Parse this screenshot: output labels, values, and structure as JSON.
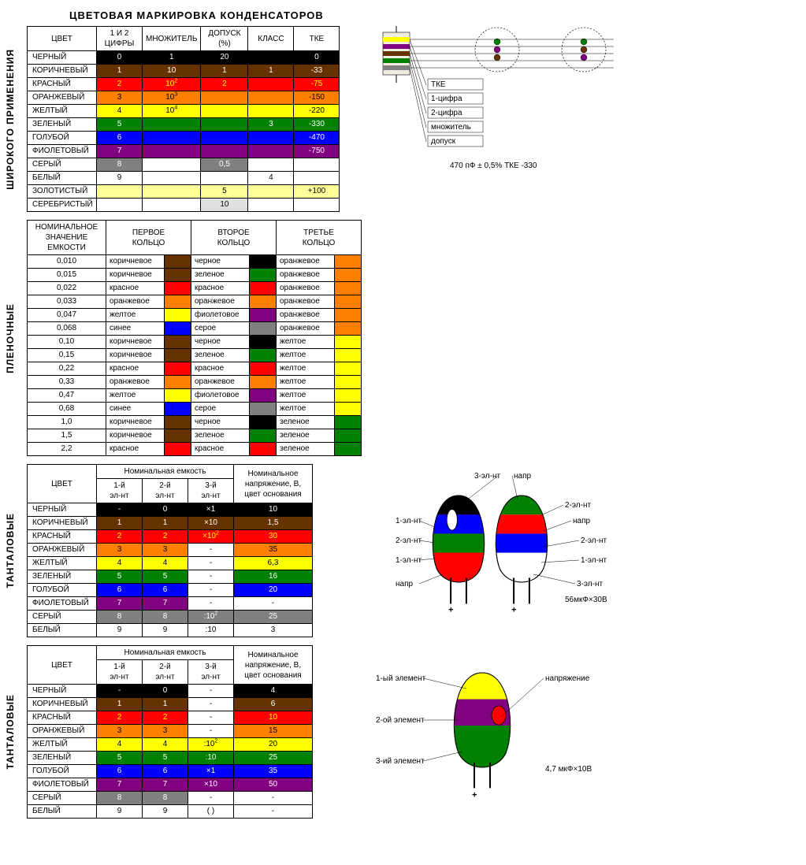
{
  "title": "ЦВЕТОВАЯ МАРКИРОВКА КОНДЕНСАТОРОВ",
  "palette": {
    "black": "#000000",
    "brown": "#663300",
    "red": "#ff0000",
    "orange": "#ff8000",
    "yellow": "#ffff00",
    "green": "#008000",
    "blue": "#0000ff",
    "violet": "#800080",
    "grey": "#808080",
    "white": "#ffffff",
    "gold": "#ffff99",
    "silver": "#e0e0e0"
  },
  "text_on": {
    "black": "#ffffff",
    "brown": "#ffffff",
    "red": "#ffff00",
    "orange": "#000000",
    "yellow": "#000000",
    "green": "#ffffff",
    "blue": "#ffffff",
    "violet": "#ffffff",
    "grey": "#ffffff",
    "white": "#000000",
    "gold": "#000000",
    "silver": "#000000",
    "none": "#000000"
  },
  "col_widths": {
    "t1": [
      88,
      58,
      74,
      60,
      58,
      58
    ],
    "t2": [
      100,
      74,
      34,
      74,
      34,
      74,
      34
    ],
    "t3": [
      88,
      58,
      58,
      58,
      100
    ],
    "t4": [
      88,
      58,
      58,
      58,
      100
    ]
  },
  "section1": {
    "vlabel": "ШИРОКОГО ПРИМЕНЕНИЯ",
    "headers": [
      "ЦВЕТ",
      "1 И 2\nЦИФРЫ",
      "МНОЖИТЕЛЬ",
      "ДОПУСК\n(%)",
      "КЛАСС",
      "ТКЕ"
    ],
    "rows": [
      {
        "name": "ЧЕРНЫЙ",
        "c": "black",
        "d": "0",
        "m": "1",
        "tol": "20",
        "klass": "",
        "tke": "0"
      },
      {
        "name": "КОРИЧНЕВЫЙ",
        "c": "brown",
        "d": "1",
        "m": "10",
        "tol": "1",
        "klass": "1",
        "tke": "-33"
      },
      {
        "name": "КРАСНЫЙ",
        "c": "red",
        "d": "2",
        "m": "10^2",
        "tol": "2",
        "klass": "",
        "tke": "-75"
      },
      {
        "name": "ОРАНЖЕВЫЙ",
        "c": "orange",
        "d": "3",
        "m": "10^3",
        "tol": "",
        "klass": "",
        "tke": "-150"
      },
      {
        "name": "ЖЕЛТЫЙ",
        "c": "yellow",
        "d": "4",
        "m": "10^4",
        "tol": "",
        "klass": "",
        "tke": "-220"
      },
      {
        "name": "ЗЕЛЕНЫЙ",
        "c": "green",
        "d": "5",
        "m": "",
        "tol": "",
        "klass": "3",
        "tke": "-330"
      },
      {
        "name": "ГОЛУБОЙ",
        "c": "blue",
        "d": "6",
        "m": "",
        "tol": "",
        "klass": "",
        "tke": "-470"
      },
      {
        "name": "ФИОЛЕТОВЫЙ",
        "c": "violet",
        "d": "7",
        "m": "",
        "tol": "",
        "klass": "",
        "tke": "-750"
      },
      {
        "name": "СЕРЫЙ",
        "c": "grey",
        "d": "8",
        "m": "",
        "tol": "0,5",
        "klass": "",
        "tke": "",
        "special": "dm_only"
      },
      {
        "name": "БЕЛЫЙ",
        "c": "white",
        "d": "9",
        "m": "",
        "tol": "",
        "klass": "4",
        "tke": "",
        "plain": true
      },
      {
        "name": "ЗОЛОТИСТЫЙ",
        "c": "gold",
        "d": "",
        "m": "",
        "tol": "5",
        "klass": "",
        "tke": "+100",
        "special": "full"
      },
      {
        "name": "СЕРЕБРИСТЫЙ",
        "c": "silver",
        "d": "",
        "m": "",
        "tol": "10",
        "klass": "",
        "tke": "",
        "special": "tol_only"
      }
    ],
    "diagram": {
      "bands": [
        "yellow",
        "violet",
        "brown",
        "green",
        "grey"
      ],
      "dots2": [
        "green",
        "violet",
        "brown"
      ],
      "dots3": [
        "green",
        "brown",
        "violet"
      ],
      "labels": [
        "ТКЕ",
        "1-цифра",
        "2-цифра",
        "множитель",
        "допуск"
      ],
      "example": "470 пФ ± 0,5% ТКЕ -330"
    }
  },
  "section2": {
    "vlabel": "ПЛЕНОЧНЫЕ",
    "headers": [
      "НОМИНАЛЬНОЕ\nЗНАЧЕНИЕ\nЕМКОСТИ",
      "ПЕРВОЕ\nКОЛЬЦО",
      "ВТОРОЕ\nКОЛЬЦО",
      "ТРЕТЬЕ\nКОЛЬЦО"
    ],
    "rows": [
      {
        "v": "0,010",
        "a": [
          "коричневое",
          "brown"
        ],
        "b": [
          "черное",
          "black"
        ],
        "c": [
          "оранжевое",
          "orange"
        ]
      },
      {
        "v": "0,015",
        "a": [
          "коричневое",
          "brown"
        ],
        "b": [
          "зеленое",
          "green"
        ],
        "c": [
          "оранжевое",
          "orange"
        ]
      },
      {
        "v": "0,022",
        "a": [
          "красное",
          "red"
        ],
        "b": [
          "красное",
          "red"
        ],
        "c": [
          "оранжевое",
          "orange"
        ]
      },
      {
        "v": "0,033",
        "a": [
          "оранжевое",
          "orange"
        ],
        "b": [
          "оранжевое",
          "orange"
        ],
        "c": [
          "оранжевое",
          "orange"
        ]
      },
      {
        "v": "0,047",
        "a": [
          "желтое",
          "yellow"
        ],
        "b": [
          "фиолетовое",
          "violet"
        ],
        "c": [
          "оранжевое",
          "orange"
        ]
      },
      {
        "v": "0,068",
        "a": [
          "синее",
          "blue"
        ],
        "b": [
          "серое",
          "grey"
        ],
        "c": [
          "оранжевое",
          "orange"
        ]
      },
      {
        "v": "0,10",
        "a": [
          "коричневое",
          "brown"
        ],
        "b": [
          "черное",
          "black"
        ],
        "c": [
          "желтое",
          "yellow"
        ]
      },
      {
        "v": "0,15",
        "a": [
          "коричневое",
          "brown"
        ],
        "b": [
          "зеленое",
          "green"
        ],
        "c": [
          "желтое",
          "yellow"
        ]
      },
      {
        "v": "0,22",
        "a": [
          "красное",
          "red"
        ],
        "b": [
          "красное",
          "red"
        ],
        "c": [
          "желтое",
          "yellow"
        ]
      },
      {
        "v": "0,33",
        "a": [
          "оранжевое",
          "orange"
        ],
        "b": [
          "оранжевое",
          "orange"
        ],
        "c": [
          "желтое",
          "yellow"
        ]
      },
      {
        "v": "0,47",
        "a": [
          "желтое",
          "yellow"
        ],
        "b": [
          "фиолетовое",
          "violet"
        ],
        "c": [
          "желтое",
          "yellow"
        ]
      },
      {
        "v": "0,68",
        "a": [
          "синее",
          "blue"
        ],
        "b": [
          "серое",
          "grey"
        ],
        "c": [
          "желтое",
          "yellow"
        ]
      },
      {
        "v": "1,0",
        "a": [
          "коричневое",
          "brown"
        ],
        "b": [
          "черное",
          "black"
        ],
        "c": [
          "зеленое",
          "green"
        ]
      },
      {
        "v": "1,5",
        "a": [
          "коричневое",
          "brown"
        ],
        "b": [
          "зеленое",
          "green"
        ],
        "c": [
          "зеленое",
          "green"
        ]
      },
      {
        "v": "2,2",
        "a": [
          "красное",
          "red"
        ],
        "b": [
          "красное",
          "red"
        ],
        "c": [
          "зеленое",
          "green"
        ]
      }
    ]
  },
  "section3": {
    "vlabel": "ТАНТАЛОВЫЕ",
    "topHeader": "Номинальная емкость",
    "subHeaders": [
      "1-й\nэл-нт",
      "2-й\nэл-нт",
      "3-й\nэл-нт"
    ],
    "rightHeader": "Номинальное\nнапряжение, В,\nцвет основания",
    "headers0": "ЦВЕТ",
    "rows": [
      {
        "name": "ЧЕРНЫЙ",
        "c": "black",
        "a": "-",
        "b": "0",
        "m": "×1",
        "v": "10"
      },
      {
        "name": "КОРИЧНЕВЫЙ",
        "c": "brown",
        "a": "1",
        "b": "1",
        "m": "×10",
        "v": "1,5"
      },
      {
        "name": "КРАСНЫЙ",
        "c": "red",
        "a": "2",
        "b": "2",
        "m": "×10^2",
        "v": "30"
      },
      {
        "name": "ОРАНЖЕВЫЙ",
        "c": "orange",
        "a": "3",
        "b": "3",
        "m": "-",
        "v": "35",
        "m_plain": true
      },
      {
        "name": "ЖЕЛТЫЙ",
        "c": "yellow",
        "a": "4",
        "b": "4",
        "m": "-",
        "v": "6,3",
        "m_plain": true
      },
      {
        "name": "ЗЕЛЕНЫЙ",
        "c": "green",
        "a": "5",
        "b": "5",
        "m": "-",
        "v": "16",
        "m_plain": true
      },
      {
        "name": "ГОЛУБОЙ",
        "c": "blue",
        "a": "6",
        "b": "6",
        "m": "-",
        "v": "20",
        "m_plain": true
      },
      {
        "name": "ФИОЛЕТОВЫЙ",
        "c": "violet",
        "a": "7",
        "b": "7",
        "m": "-",
        "v": "-",
        "m_plain": true,
        "v_plain": true
      },
      {
        "name": "СЕРЫЙ",
        "c": "grey",
        "a": "8",
        "b": "8",
        "m": ":10^2",
        "v": "25"
      },
      {
        "name": "БЕЛЫЙ",
        "c": "white",
        "a": "9",
        "b": "9",
        "m": ":10",
        "v": "3",
        "plain": true
      }
    ],
    "diagram": {
      "labels": {
        "e1": "1-эл-нт",
        "e2": "2-эл-нт",
        "e3": "3-эл-нт",
        "v": "напр"
      },
      "tcolors": [
        "black",
        "blue",
        "green",
        "red"
      ],
      "rcolors": [
        "green",
        "red",
        "blue",
        "white"
      ],
      "example": "56мкФ×30В"
    }
  },
  "section4": {
    "vlabel": "ТАНТАЛОВЫЕ",
    "topHeader": "Номинальная емкость",
    "subHeaders": [
      "1-й\nэл-нт",
      "2-й\nэл-нт",
      "3-й\nэл-нт"
    ],
    "rightHeader": "Номинальное\nнапряжение, В,\nцвет основания",
    "headers0": "ЦВЕТ",
    "rows": [
      {
        "name": "ЧЕРНЫЙ",
        "c": "black",
        "a": "-",
        "b": "0",
        "m": "-",
        "v": "4",
        "m_plain": true
      },
      {
        "name": "КОРИЧНЕВЫЙ",
        "c": "brown",
        "a": "1",
        "b": "1",
        "m": "-",
        "v": "6",
        "m_plain": true
      },
      {
        "name": "КРАСНЫЙ",
        "c": "red",
        "a": "2",
        "b": "2",
        "m": "-",
        "v": "10",
        "m_plain": true
      },
      {
        "name": "ОРАНЖЕВЫЙ",
        "c": "orange",
        "a": "3",
        "b": "3",
        "m": "-",
        "v": "15",
        "m_plain": true
      },
      {
        "name": "ЖЕЛТЫЙ",
        "c": "yellow",
        "a": "4",
        "b": "4",
        "m": ":10^2",
        "v": "20"
      },
      {
        "name": "ЗЕЛЕНЫЙ",
        "c": "green",
        "a": "5",
        "b": "5",
        "m": ":10",
        "v": "25"
      },
      {
        "name": "ГОЛУБОЙ",
        "c": "blue",
        "a": "6",
        "b": "6",
        "m": "×1",
        "v": "35"
      },
      {
        "name": "ФИОЛЕТОВЫЙ",
        "c": "violet",
        "a": "7",
        "b": "7",
        "m": "×10",
        "v": "50"
      },
      {
        "name": "СЕРЫЙ",
        "c": "grey",
        "a": "8",
        "b": "8",
        "m": "-",
        "v": "-",
        "m_plain": true,
        "v_plain": true
      },
      {
        "name": "БЕЛЫЙ",
        "c": "white",
        "a": "9",
        "b": "9",
        "m": "( )",
        "v": "-",
        "plain": true,
        "v_plain": true
      }
    ],
    "diagram": {
      "labels": {
        "e1": "1-ый элемент",
        "e2": "2-ой элемент",
        "e3": "3-ий элемент",
        "v": "напряжение"
      },
      "bands": [
        "yellow",
        "violet",
        "green"
      ],
      "dot": "red",
      "example": "4,7 мкФ×10В"
    }
  }
}
